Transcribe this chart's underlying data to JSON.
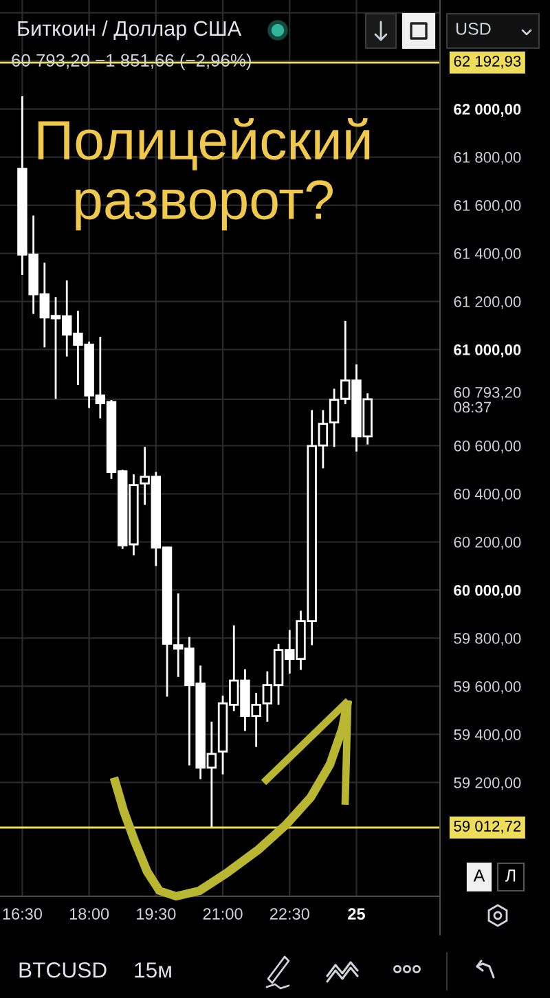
{
  "chart_data": {
    "type": "candlestick",
    "title": "Биткоин / Доллар США",
    "subtitle": "60 793,20 −1 851,66 (−2,96%)",
    "categories": [
      "16:30",
      null,
      null,
      null,
      null,
      null,
      "18:00",
      null,
      null,
      null,
      null,
      null,
      "19:30",
      null,
      null,
      null,
      null,
      null,
      "21:00",
      null,
      null,
      null,
      null,
      null,
      "22:30",
      null,
      null,
      null,
      null,
      null,
      "25",
      null
    ],
    "series": [
      {
        "color": "#ffffff",
        "ohlc": [
          [
            61751,
            62053,
            61310,
            61395
          ],
          [
            61395,
            61557,
            61148,
            61230
          ],
          [
            61230,
            61361,
            61009,
            61133
          ],
          [
            61140,
            61218,
            60795,
            61130
          ],
          [
            61138,
            61287,
            60971,
            61062
          ],
          [
            61066,
            61161,
            60853,
            61020
          ],
          [
            61020,
            61033,
            60757,
            60809
          ],
          [
            60809,
            61053,
            60714,
            60777
          ],
          [
            60782,
            60790,
            60462,
            60491
          ],
          [
            60494,
            60500,
            60171,
            60186
          ],
          [
            60190,
            60481,
            60144,
            60437
          ],
          [
            60443,
            60595,
            60354,
            60471
          ],
          [
            60471,
            60491,
            60100,
            60177
          ],
          [
            60177,
            60180,
            59557,
            59777
          ],
          [
            59771,
            59986,
            59639,
            59757
          ],
          [
            59757,
            59805,
            59271,
            59605
          ],
          [
            59611,
            59686,
            59214,
            59262
          ],
          [
            59262,
            59453,
            59015,
            59319
          ],
          [
            59329,
            59561,
            59234,
            59529
          ],
          [
            59523,
            59853,
            59497,
            59624
          ],
          [
            59624,
            59671,
            59414,
            59477
          ],
          [
            59477,
            59573,
            59348,
            59523
          ],
          [
            59529,
            59662,
            59453,
            59605
          ],
          [
            59605,
            59776,
            59523,
            59751
          ],
          [
            59751,
            59834,
            59653,
            59714
          ],
          [
            59714,
            59914,
            59668,
            59871
          ],
          [
            59871,
            60748,
            59771,
            60599
          ],
          [
            60601,
            60748,
            60506,
            60691
          ],
          [
            60697,
            60837,
            60595,
            60791
          ],
          [
            60795,
            61119,
            60773,
            60871
          ],
          [
            60871,
            60938,
            60576,
            60639
          ],
          [
            60639,
            60818,
            60605,
            60793.2
          ]
        ]
      }
    ],
    "ylim": [
      58727,
      62453
    ],
    "yticks": [
      {
        "value": 59200,
        "label": "59 200,00"
      },
      {
        "value": 59400,
        "label": "59 400,00"
      },
      {
        "value": 59600,
        "label": "59 600,00"
      },
      {
        "value": 59800,
        "label": "59 800,00"
      },
      {
        "value": 60000,
        "label": "60 000,00"
      },
      {
        "value": 60200,
        "label": "60 200,00"
      },
      {
        "value": 60400,
        "label": "60 400,00"
      },
      {
        "value": 60600,
        "label": "60 600,00"
      },
      {
        "value": 60793.2,
        "label": "60 793,20\n08:37"
      },
      {
        "value": 61000,
        "label": "61 000,00"
      },
      {
        "value": 61200,
        "label": "61 200,00"
      },
      {
        "value": 61400,
        "label": "61 400,00"
      },
      {
        "value": 61600,
        "label": "61 600,00"
      },
      {
        "value": 61800,
        "label": "61 800,00"
      },
      {
        "value": 62000,
        "label": "62 000,00"
      },
      {
        "value": 62200,
        "label": null
      },
      {
        "value": 62400,
        "label": null
      }
    ],
    "ref_lines": [
      {
        "axis": "y",
        "value": 62192.93,
        "label": "62 192,93",
        "color": "#eedd5a"
      },
      {
        "axis": "y",
        "value": 59012.72,
        "label": "59 012,72",
        "color": "#eedd5a"
      }
    ],
    "grid": true,
    "annotations": [
      "Полицейский\nразворот?",
      "USD",
      "А",
      "Л",
      "BTCUSD",
      "15м"
    ]
  }
}
